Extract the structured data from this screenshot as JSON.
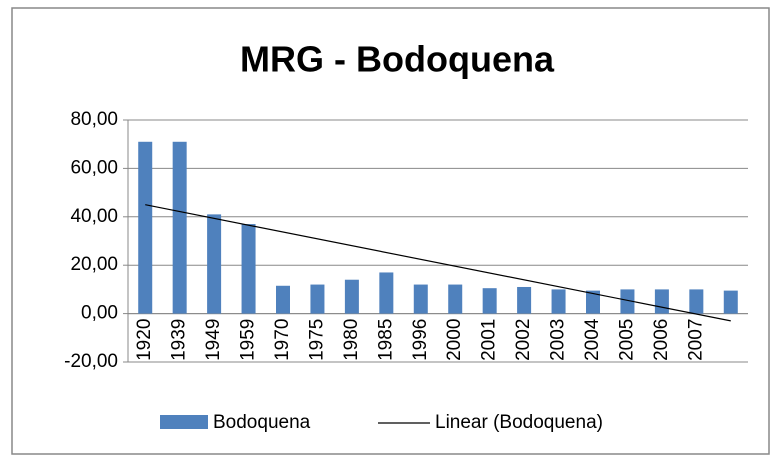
{
  "chart_data": {
    "type": "bar",
    "title": "MRG - Bodoquena",
    "categories": [
      "1920",
      "1939",
      "1949",
      "1959",
      "1970",
      "1975",
      "1980",
      "1985",
      "1996",
      "2000",
      "2001",
      "2002",
      "2003",
      "2004",
      "2005",
      "2006",
      "2007",
      null
    ],
    "series": [
      {
        "name": "Bodoquena",
        "color": "#4f81bd",
        "values": [
          71,
          71,
          41,
          37,
          11.5,
          12,
          14,
          17,
          12,
          12,
          10.5,
          11,
          10,
          9.5,
          10,
          10,
          10,
          9.5
        ]
      }
    ],
    "trendline": {
      "name": "Linear (Bodoquena)",
      "color": "#000000",
      "values": [
        45,
        -3
      ]
    },
    "ylim": [
      -20,
      80
    ],
    "yticks": [
      {
        "value": -20,
        "label": "-20,00"
      },
      {
        "value": 0,
        "label": "0,00"
      },
      {
        "value": 20,
        "label": "20,00"
      },
      {
        "value": 40,
        "label": "40,00"
      },
      {
        "value": 60,
        "label": "60,00"
      },
      {
        "value": 80,
        "label": "80,00"
      }
    ],
    "grid": true,
    "legend": "bottom"
  }
}
